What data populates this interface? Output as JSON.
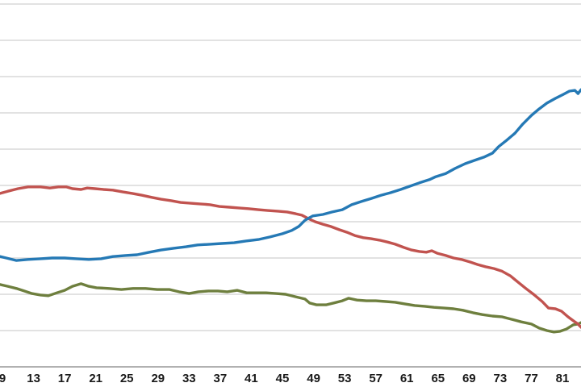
{
  "axis": {
    "gridline_color": "#d9d9d9",
    "axis_line_color": "#a6a6a6",
    "label_color": "#1a1a1a"
  },
  "chart_data": {
    "type": "line",
    "grid": true,
    "legend_position": "none-visible",
    "y_axis_labels_visible": false,
    "y_unit": "gridline-units",
    "xlim": [
      8.4,
      83.4
    ],
    "ylim": [
      0,
      10
    ],
    "y_gridline_step": 1,
    "x_tick_values": [
      9,
      13,
      17,
      21,
      25,
      29,
      33,
      37,
      41,
      45,
      49,
      53,
      57,
      61,
      65,
      69,
      73,
      77,
      81
    ],
    "x_tick_labels": [
      "9",
      "13",
      "17",
      "21",
      "25",
      "29",
      "33",
      "37",
      "41",
      "45",
      "49",
      "53",
      "57",
      "61",
      "65",
      "69",
      "73",
      "77",
      "81"
    ],
    "series": [
      {
        "name": "blue",
        "color": "#2579b5",
        "points": [
          [
            8.7,
            3.04
          ],
          [
            9.5,
            3.0
          ],
          [
            10.8,
            2.93
          ],
          [
            12.3,
            2.96
          ],
          [
            13.9,
            2.98
          ],
          [
            15.4,
            3.0
          ],
          [
            17.0,
            3.0
          ],
          [
            18.5,
            2.98
          ],
          [
            20.1,
            2.96
          ],
          [
            21.7,
            2.98
          ],
          [
            23.2,
            3.04
          ],
          [
            24.8,
            3.07
          ],
          [
            26.3,
            3.09
          ],
          [
            27.9,
            3.16
          ],
          [
            29.4,
            3.22
          ],
          [
            31.0,
            3.27
          ],
          [
            32.6,
            3.31
          ],
          [
            34.1,
            3.36
          ],
          [
            35.7,
            3.38
          ],
          [
            37.2,
            3.4
          ],
          [
            38.8,
            3.42
          ],
          [
            40.3,
            3.47
          ],
          [
            41.9,
            3.51
          ],
          [
            43.4,
            3.58
          ],
          [
            45.0,
            3.67
          ],
          [
            46.2,
            3.76
          ],
          [
            47.1,
            3.87
          ],
          [
            47.9,
            4.04
          ],
          [
            48.9,
            4.16
          ],
          [
            50.2,
            4.2
          ],
          [
            51.4,
            4.27
          ],
          [
            52.7,
            4.33
          ],
          [
            53.9,
            4.47
          ],
          [
            55.2,
            4.56
          ],
          [
            56.4,
            4.64
          ],
          [
            57.7,
            4.73
          ],
          [
            58.9,
            4.8
          ],
          [
            60.2,
            4.89
          ],
          [
            61.4,
            4.98
          ],
          [
            62.6,
            5.07
          ],
          [
            63.9,
            5.16
          ],
          [
            64.7,
            5.24
          ],
          [
            66.0,
            5.33
          ],
          [
            67.2,
            5.47
          ],
          [
            68.5,
            5.6
          ],
          [
            69.7,
            5.69
          ],
          [
            70.9,
            5.78
          ],
          [
            72.0,
            5.89
          ],
          [
            72.8,
            6.07
          ],
          [
            73.8,
            6.24
          ],
          [
            74.9,
            6.44
          ],
          [
            75.9,
            6.69
          ],
          [
            77.0,
            6.93
          ],
          [
            78.0,
            7.11
          ],
          [
            79.0,
            7.27
          ],
          [
            80.1,
            7.4
          ],
          [
            81.1,
            7.51
          ],
          [
            81.9,
            7.6
          ],
          [
            82.6,
            7.62
          ],
          [
            83.0,
            7.53
          ],
          [
            83.4,
            7.64
          ]
        ]
      },
      {
        "name": "red",
        "color": "#c1534f",
        "points": [
          [
            8.7,
            4.78
          ],
          [
            9.7,
            4.84
          ],
          [
            11.0,
            4.91
          ],
          [
            12.3,
            4.96
          ],
          [
            13.9,
            4.96
          ],
          [
            15.1,
            4.93
          ],
          [
            16.2,
            4.96
          ],
          [
            17.2,
            4.96
          ],
          [
            18.0,
            4.91
          ],
          [
            19.1,
            4.89
          ],
          [
            19.9,
            4.93
          ],
          [
            20.9,
            4.91
          ],
          [
            22.0,
            4.89
          ],
          [
            23.2,
            4.87
          ],
          [
            24.5,
            4.82
          ],
          [
            25.7,
            4.78
          ],
          [
            26.9,
            4.73
          ],
          [
            28.2,
            4.67
          ],
          [
            29.4,
            4.62
          ],
          [
            30.7,
            4.58
          ],
          [
            31.9,
            4.53
          ],
          [
            33.2,
            4.51
          ],
          [
            34.4,
            4.49
          ],
          [
            35.7,
            4.47
          ],
          [
            36.9,
            4.42
          ],
          [
            38.2,
            4.4
          ],
          [
            39.4,
            4.38
          ],
          [
            40.6,
            4.36
          ],
          [
            41.9,
            4.33
          ],
          [
            43.1,
            4.31
          ],
          [
            44.4,
            4.29
          ],
          [
            45.6,
            4.27
          ],
          [
            46.7,
            4.22
          ],
          [
            47.5,
            4.18
          ],
          [
            48.3,
            4.09
          ],
          [
            49.2,
            4.0
          ],
          [
            50.2,
            3.93
          ],
          [
            51.2,
            3.87
          ],
          [
            52.3,
            3.78
          ],
          [
            53.3,
            3.71
          ],
          [
            54.3,
            3.62
          ],
          [
            55.4,
            3.56
          ],
          [
            56.4,
            3.53
          ],
          [
            57.5,
            3.49
          ],
          [
            58.5,
            3.44
          ],
          [
            59.5,
            3.38
          ],
          [
            60.6,
            3.29
          ],
          [
            61.6,
            3.22
          ],
          [
            62.6,
            3.18
          ],
          [
            63.5,
            3.16
          ],
          [
            64.2,
            3.2
          ],
          [
            64.9,
            3.13
          ],
          [
            66.0,
            3.07
          ],
          [
            67.0,
            3.0
          ],
          [
            68.0,
            2.96
          ],
          [
            69.1,
            2.89
          ],
          [
            70.1,
            2.82
          ],
          [
            71.1,
            2.76
          ],
          [
            72.2,
            2.71
          ],
          [
            73.2,
            2.64
          ],
          [
            74.3,
            2.51
          ],
          [
            75.3,
            2.33
          ],
          [
            76.3,
            2.16
          ],
          [
            77.4,
            1.98
          ],
          [
            78.4,
            1.8
          ],
          [
            79.2,
            1.62
          ],
          [
            80.1,
            1.6
          ],
          [
            80.9,
            1.53
          ],
          [
            81.7,
            1.38
          ],
          [
            82.6,
            1.24
          ],
          [
            83.0,
            1.18
          ],
          [
            83.4,
            1.09
          ]
        ]
      },
      {
        "name": "olive",
        "color": "#6e7f3e",
        "points": [
          [
            8.7,
            2.27
          ],
          [
            9.7,
            2.22
          ],
          [
            10.8,
            2.16
          ],
          [
            11.8,
            2.09
          ],
          [
            12.8,
            2.02
          ],
          [
            13.9,
            1.98
          ],
          [
            14.9,
            1.96
          ],
          [
            16.0,
            2.04
          ],
          [
            17.0,
            2.11
          ],
          [
            18.0,
            2.22
          ],
          [
            19.1,
            2.29
          ],
          [
            20.1,
            2.22
          ],
          [
            21.1,
            2.18
          ],
          [
            22.7,
            2.16
          ],
          [
            24.3,
            2.13
          ],
          [
            25.8,
            2.16
          ],
          [
            27.4,
            2.16
          ],
          [
            28.9,
            2.13
          ],
          [
            30.5,
            2.13
          ],
          [
            31.7,
            2.07
          ],
          [
            33.0,
            2.02
          ],
          [
            34.2,
            2.07
          ],
          [
            35.5,
            2.09
          ],
          [
            36.7,
            2.09
          ],
          [
            37.9,
            2.07
          ],
          [
            39.2,
            2.11
          ],
          [
            40.4,
            2.04
          ],
          [
            41.7,
            2.04
          ],
          [
            42.9,
            2.04
          ],
          [
            44.2,
            2.02
          ],
          [
            45.4,
            2.0
          ],
          [
            46.7,
            1.93
          ],
          [
            47.9,
            1.87
          ],
          [
            48.5,
            1.76
          ],
          [
            49.4,
            1.71
          ],
          [
            50.6,
            1.71
          ],
          [
            51.6,
            1.76
          ],
          [
            52.7,
            1.82
          ],
          [
            53.5,
            1.89
          ],
          [
            54.6,
            1.84
          ],
          [
            55.8,
            1.82
          ],
          [
            57.0,
            1.82
          ],
          [
            58.3,
            1.8
          ],
          [
            59.5,
            1.78
          ],
          [
            60.8,
            1.73
          ],
          [
            62.0,
            1.69
          ],
          [
            63.3,
            1.67
          ],
          [
            64.5,
            1.64
          ],
          [
            65.8,
            1.62
          ],
          [
            67.0,
            1.6
          ],
          [
            68.2,
            1.56
          ],
          [
            69.5,
            1.49
          ],
          [
            70.7,
            1.44
          ],
          [
            72.0,
            1.4
          ],
          [
            73.2,
            1.38
          ],
          [
            74.5,
            1.31
          ],
          [
            75.7,
            1.24
          ],
          [
            77.0,
            1.18
          ],
          [
            78.0,
            1.07
          ],
          [
            79.0,
            1.0
          ],
          [
            79.9,
            0.96
          ],
          [
            80.7,
            0.98
          ],
          [
            81.5,
            1.04
          ],
          [
            82.4,
            1.16
          ],
          [
            83.0,
            1.18
          ],
          [
            83.4,
            1.22
          ]
        ]
      }
    ]
  }
}
